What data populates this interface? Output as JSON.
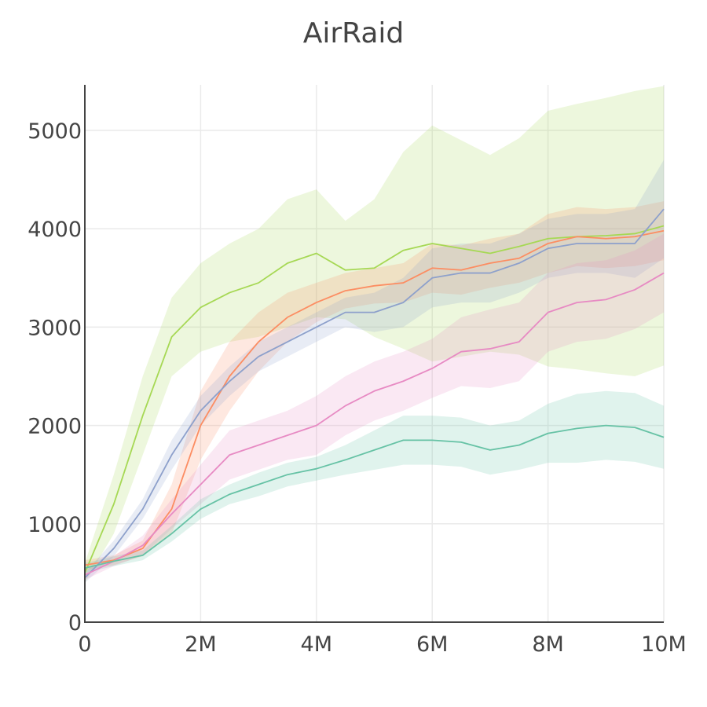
{
  "chart_data": {
    "type": "line",
    "title": "AirRaid",
    "xlabel": "",
    "ylabel": "",
    "xlim": [
      0,
      10000000
    ],
    "ylim": [
      0,
      5450
    ],
    "grid": true,
    "legend": "none",
    "x_ticks": [
      0,
      2000000,
      4000000,
      6000000,
      8000000,
      10000000
    ],
    "x_tick_labels": [
      "0",
      "2M",
      "4M",
      "6M",
      "8M",
      "10M"
    ],
    "y_ticks": [
      0,
      1000,
      2000,
      3000,
      4000,
      5000
    ],
    "y_tick_labels": [
      "0",
      "1000",
      "2000",
      "3000",
      "4000",
      "5000"
    ],
    "x": [
      0,
      500000,
      1000000,
      1500000,
      2000000,
      2500000,
      3000000,
      3500000,
      4000000,
      4500000,
      5000000,
      5500000,
      6000000,
      6500000,
      7000000,
      7500000,
      8000000,
      8500000,
      9000000,
      9500000,
      10000000
    ],
    "series": [
      {
        "color": "#a6d854",
        "values": [
          500,
          1200,
          2100,
          2900,
          3200,
          3350,
          3450,
          3650,
          3750,
          3580,
          3600,
          3780,
          3850,
          3800,
          3750,
          3820,
          3900,
          3920,
          3930,
          3950,
          4030
        ],
        "upper": [
          600,
          1500,
          2500,
          3300,
          3650,
          3850,
          4000,
          4300,
          4400,
          4080,
          4300,
          4780,
          5050,
          4900,
          4750,
          4920,
          5200,
          5270,
          5330,
          5400,
          5450
        ],
        "lower": [
          400,
          900,
          1700,
          2500,
          2750,
          2850,
          2900,
          3000,
          3100,
          3080,
          2900,
          2780,
          2650,
          2700,
          2750,
          2720,
          2600,
          2570,
          2530,
          2500,
          2610
        ]
      },
      {
        "color": "#fc8d62",
        "values": [
          580,
          630,
          750,
          1150,
          2000,
          2500,
          2850,
          3100,
          3250,
          3370,
          3420,
          3450,
          3600,
          3580,
          3650,
          3700,
          3850,
          3920,
          3900,
          3920,
          3980
        ],
        "upper": [
          630,
          680,
          830,
          1400,
          2350,
          2850,
          3150,
          3350,
          3450,
          3550,
          3600,
          3650,
          3850,
          3830,
          3900,
          3950,
          4150,
          4220,
          4200,
          4220,
          4280
        ],
        "lower": [
          530,
          580,
          670,
          900,
          1650,
          2150,
          2550,
          2850,
          3050,
          3190,
          3240,
          3250,
          3350,
          3330,
          3400,
          3450,
          3550,
          3620,
          3600,
          3620,
          3680
        ]
      },
      {
        "color": "#8da0cb",
        "values": [
          450,
          750,
          1150,
          1700,
          2150,
          2450,
          2700,
          2850,
          3000,
          3150,
          3150,
          3250,
          3500,
          3550,
          3550,
          3650,
          3800,
          3850,
          3850,
          3850,
          4200
        ],
        "upper": [
          500,
          830,
          1250,
          1850,
          2300,
          2600,
          2850,
          3000,
          3150,
          3300,
          3350,
          3500,
          3800,
          3850,
          3850,
          3950,
          4100,
          4150,
          4150,
          4200,
          4700
        ],
        "lower": [
          400,
          670,
          1050,
          1550,
          2000,
          2300,
          2550,
          2700,
          2850,
          3000,
          2950,
          3000,
          3200,
          3250,
          3250,
          3350,
          3500,
          3550,
          3550,
          3500,
          3700
        ]
      },
      {
        "color": "#e78ac3",
        "values": [
          480,
          620,
          780,
          1100,
          1400,
          1700,
          1800,
          1900,
          2000,
          2200,
          2350,
          2450,
          2580,
          2750,
          2780,
          2850,
          3150,
          3250,
          3280,
          3380,
          3550
        ],
        "upper": [
          530,
          670,
          880,
          1250,
          1600,
          1950,
          2050,
          2150,
          2300,
          2500,
          2650,
          2750,
          2880,
          3100,
          3180,
          3250,
          3550,
          3650,
          3680,
          3780,
          3950
        ],
        "lower": [
          430,
          570,
          680,
          950,
          1200,
          1450,
          1550,
          1650,
          1700,
          1900,
          2050,
          2150,
          2280,
          2400,
          2380,
          2450,
          2750,
          2850,
          2880,
          2980,
          3150
        ]
      },
      {
        "color": "#66c2a5",
        "values": [
          550,
          620,
          680,
          900,
          1150,
          1300,
          1400,
          1500,
          1560,
          1650,
          1750,
          1850,
          1850,
          1830,
          1750,
          1800,
          1920,
          1970,
          2000,
          1980,
          1880
        ],
        "upper": [
          600,
          670,
          730,
          980,
          1250,
          1400,
          1520,
          1620,
          1680,
          1800,
          1950,
          2100,
          2100,
          2080,
          2000,
          2050,
          2220,
          2320,
          2350,
          2330,
          2200
        ],
        "lower": [
          500,
          570,
          630,
          820,
          1050,
          1200,
          1280,
          1380,
          1440,
          1500,
          1550,
          1600,
          1600,
          1580,
          1500,
          1550,
          1620,
          1620,
          1650,
          1630,
          1560
        ]
      }
    ]
  }
}
